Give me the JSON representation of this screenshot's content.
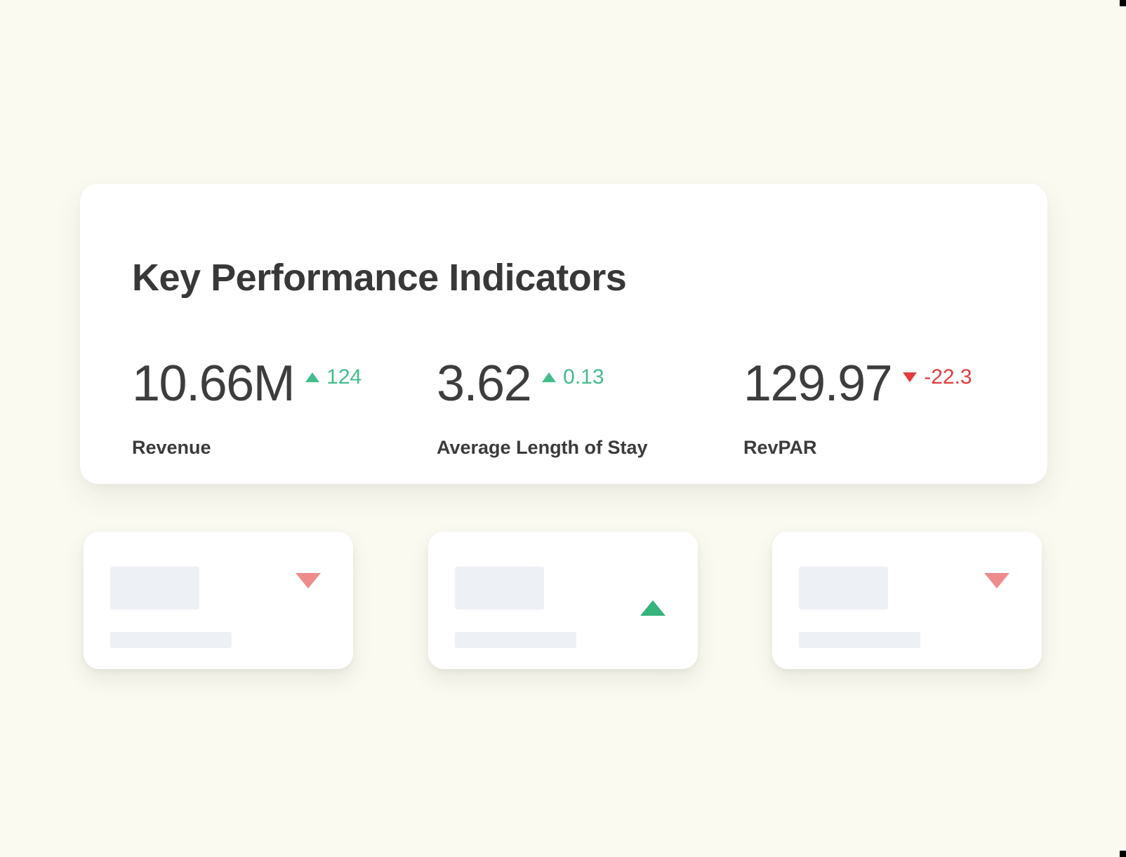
{
  "colors": {
    "background": "#FAFAF1",
    "card": "#FFFFFF",
    "text": "#3B3B3B",
    "delta_up_green": "#42BD8A",
    "delta_down_red": "#E23D3D",
    "tile_up_green": "#34B37A",
    "tile_down_salmon": "#EE8C8C",
    "placeholder_gray": "#EDF0F4"
  },
  "kpi_panel": {
    "title": "Key Performance Indicators",
    "items": [
      {
        "value": "10.66M",
        "delta": "124",
        "trend": "up",
        "label": "Revenue"
      },
      {
        "value": "3.62",
        "delta": "0.13",
        "trend": "up",
        "label": "Average Length of Stay"
      },
      {
        "value": "129.97",
        "delta": "-22.3",
        "trend": "down",
        "label": "RevPAR"
      }
    ]
  },
  "tiles": [
    {
      "trend": "down"
    },
    {
      "trend": "up"
    },
    {
      "trend": "down"
    }
  ]
}
